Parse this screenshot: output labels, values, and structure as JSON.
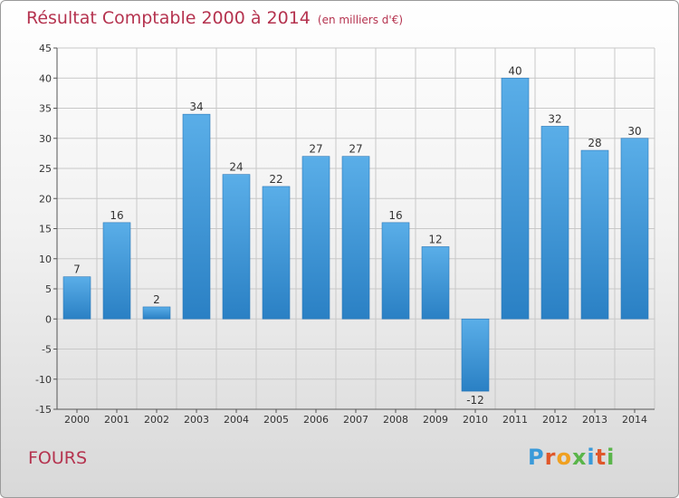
{
  "header": {
    "title": "Résultat Comptable 2000 à 2014",
    "subtitle": "(en milliers d'€)"
  },
  "footer": {
    "commune": "FOURS",
    "brand": "Proxiti",
    "brand_colors": [
      "#3a9ad9",
      "#e0572a",
      "#f0a020",
      "#5ab54a",
      "#3a9ad9",
      "#e0572a",
      "#5ab54a"
    ]
  },
  "colors": {
    "bar_light": "#5aaee8",
    "bar_dark": "#2a80c4",
    "bar_edge": "#2c78b8",
    "axis": "#555555",
    "grid": "#c8c8c8",
    "label": "#333333",
    "title": "#b5334f"
  },
  "chart_data": {
    "type": "bar",
    "title": "Résultat Comptable 2000 à 2014",
    "ylabel": "en milliers d'€",
    "xlabel": "",
    "categories": [
      "2000",
      "2001",
      "2002",
      "2003",
      "2004",
      "2005",
      "2006",
      "2007",
      "2008",
      "2009",
      "2010",
      "2011",
      "2012",
      "2013",
      "2014"
    ],
    "values": [
      7,
      16,
      2,
      34,
      24,
      22,
      27,
      27,
      16,
      12,
      -12,
      40,
      32,
      28,
      30
    ],
    "data_labels": [
      "7",
      "16",
      "2",
      "34",
      "24",
      "22",
      "27",
      "27",
      "16",
      "12",
      "-12",
      "40",
      "32",
      "28",
      "30"
    ],
    "ylim": [
      -15,
      45
    ],
    "yticks": [
      45,
      40,
      35,
      30,
      25,
      20,
      15,
      10,
      5,
      0,
      -5,
      -10,
      -15
    ],
    "ytick_labels": [
      "45",
      "40",
      "35",
      "30",
      "25",
      "20",
      "15",
      "10",
      "5",
      "0",
      "-5",
      "-10",
      "-15"
    ],
    "grid": true
  }
}
